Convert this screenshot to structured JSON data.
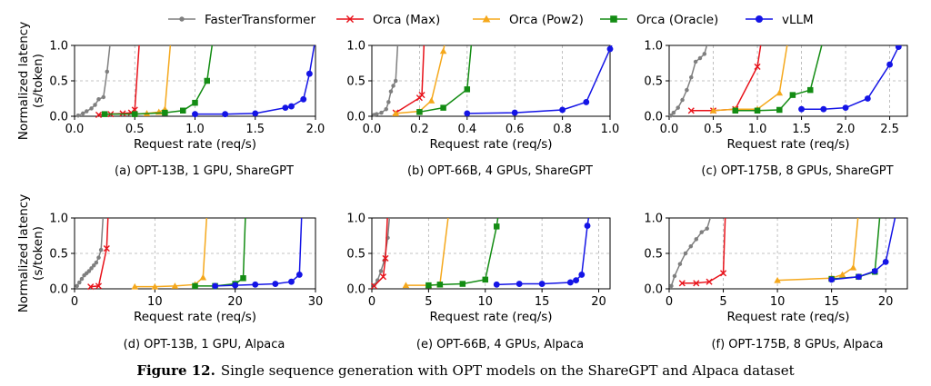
{
  "legend": {
    "items": [
      {
        "name": "FasterTransformer",
        "color": "#7f7f7f",
        "marker": "dot"
      },
      {
        "name": "Orca (Max)",
        "color": "#e8121a",
        "marker": "x"
      },
      {
        "name": "Orca (Pow2)",
        "color": "#f5a81c",
        "marker": "triangle"
      },
      {
        "name": "Orca (Oracle)",
        "color": "#138c13",
        "marker": "square"
      },
      {
        "name": "vLLM",
        "color": "#1414e6",
        "marker": "circle"
      }
    ]
  },
  "ylabel_line1": "Normalized latency",
  "ylabel_line2": "(s/token)",
  "xlabel": "Request rate (req/s)",
  "caption": {
    "label": "Figure 12.",
    "text": "Single sequence generation with OPT models on the ShareGPT and Alpaca dataset"
  },
  "chart_data": [
    {
      "type": "line",
      "subtitle": "(a) OPT-13B, 1 GPU, ShareGPT",
      "xlim": [
        0,
        2.0
      ],
      "ylim": [
        0,
        1.0
      ],
      "xticks": [
        0.0,
        0.5,
        1.0,
        1.5,
        2.0
      ],
      "xtick_labels": [
        "0.0",
        "0.5",
        "1.0",
        "1.5",
        "2.0"
      ],
      "yticks": [
        0.0,
        0.5,
        1.0
      ],
      "ytick_labels": [
        "0.0",
        "0.5",
        "1.0"
      ],
      "series": [
        {
          "name": "FasterTransformer",
          "x": [
            0.03,
            0.07,
            0.1,
            0.14,
            0.17,
            0.2,
            0.24,
            0.27,
            0.3
          ],
          "y": [
            0.01,
            0.04,
            0.07,
            0.11,
            0.16,
            0.24,
            0.27,
            0.63,
            1.1
          ]
        },
        {
          "name": "Orca (Max)",
          "x": [
            0.2,
            0.3,
            0.4,
            0.47,
            0.5,
            0.54
          ],
          "y": [
            0.02,
            0.03,
            0.04,
            0.05,
            0.09,
            1.1
          ]
        },
        {
          "name": "Orca (Pow2)",
          "x": [
            0.5,
            0.6,
            0.7,
            0.75,
            0.8
          ],
          "y": [
            0.03,
            0.04,
            0.06,
            0.1,
            1.1
          ]
        },
        {
          "name": "Orca (Oracle)",
          "x": [
            0.25,
            0.5,
            0.75,
            0.9,
            1.0,
            1.1,
            1.15
          ],
          "y": [
            0.03,
            0.03,
            0.05,
            0.08,
            0.19,
            0.5,
            1.1
          ]
        },
        {
          "name": "vLLM",
          "x": [
            1.0,
            1.25,
            1.5,
            1.75,
            1.8,
            1.9,
            1.95,
            2.0
          ],
          "y": [
            0.03,
            0.03,
            0.04,
            0.12,
            0.14,
            0.24,
            0.6,
            1.1
          ]
        }
      ]
    },
    {
      "type": "line",
      "subtitle": "(b) OPT-66B, 4 GPUs, ShareGPT",
      "xlim": [
        0,
        1.0
      ],
      "ylim": [
        0,
        1.0
      ],
      "xticks": [
        0.0,
        0.2,
        0.4,
        0.6,
        0.8,
        1.0
      ],
      "xtick_labels": [
        "0.0",
        "0.2",
        "0.4",
        "0.6",
        "0.8",
        "1.0"
      ],
      "yticks": [
        0.0,
        0.5,
        1.0
      ],
      "ytick_labels": [
        "0.0",
        "0.5",
        "1.0"
      ],
      "series": [
        {
          "name": "FasterTransformer",
          "x": [
            0.01,
            0.02,
            0.04,
            0.06,
            0.07,
            0.08,
            0.09,
            0.1,
            0.11
          ],
          "y": [
            0.02,
            0.03,
            0.05,
            0.1,
            0.2,
            0.35,
            0.43,
            0.5,
            1.1
          ]
        },
        {
          "name": "Orca (Max)",
          "x": [
            0.1,
            0.2,
            0.21,
            0.22
          ],
          "y": [
            0.05,
            0.26,
            0.3,
            1.1
          ]
        },
        {
          "name": "Orca (Pow2)",
          "x": [
            0.1,
            0.2,
            0.25,
            0.3,
            0.31
          ],
          "y": [
            0.04,
            0.07,
            0.22,
            0.92,
            1.1
          ]
        },
        {
          "name": "Orca (Oracle)",
          "x": [
            0.2,
            0.3,
            0.4,
            0.42
          ],
          "y": [
            0.06,
            0.12,
            0.38,
            1.1
          ]
        },
        {
          "name": "vLLM",
          "x": [
            0.4,
            0.6,
            0.8,
            0.9,
            1.0,
            1.02
          ],
          "y": [
            0.04,
            0.05,
            0.09,
            0.2,
            0.95,
            1.1
          ]
        }
      ]
    },
    {
      "type": "line",
      "subtitle": "(c) OPT-175B, 8 GPUs, ShareGPT",
      "xlim": [
        0,
        2.7
      ],
      "ylim": [
        0,
        1.0
      ],
      "xticks": [
        0.0,
        0.5,
        1.0,
        1.5,
        2.0,
        2.5
      ],
      "xtick_labels": [
        "0.0",
        "0.5",
        "1.0",
        "1.5",
        "2.0",
        "2.5"
      ],
      "yticks": [
        0.0,
        0.5,
        1.0
      ],
      "ytick_labels": [
        "0.0",
        "0.5",
        "1.0"
      ],
      "series": [
        {
          "name": "FasterTransformer",
          "x": [
            0.02,
            0.05,
            0.1,
            0.15,
            0.2,
            0.25,
            0.3,
            0.35,
            0.4,
            0.45
          ],
          "y": [
            0.01,
            0.05,
            0.12,
            0.23,
            0.37,
            0.55,
            0.77,
            0.82,
            0.88,
            1.1
          ]
        },
        {
          "name": "Orca (Max)",
          "x": [
            0.25,
            0.5,
            0.75,
            1.0,
            1.05
          ],
          "y": [
            0.08,
            0.08,
            0.1,
            0.7,
            1.1
          ]
        },
        {
          "name": "Orca (Pow2)",
          "x": [
            0.5,
            0.75,
            1.0,
            1.25,
            1.35
          ],
          "y": [
            0.08,
            0.1,
            0.1,
            0.33,
            1.1
          ]
        },
        {
          "name": "Orca (Oracle)",
          "x": [
            0.75,
            1.0,
            1.25,
            1.4,
            1.6,
            1.75
          ],
          "y": [
            0.08,
            0.08,
            0.09,
            0.3,
            0.37,
            1.1
          ]
        },
        {
          "name": "vLLM",
          "x": [
            1.5,
            1.75,
            2.0,
            2.25,
            2.5,
            2.6,
            2.65
          ],
          "y": [
            0.1,
            0.1,
            0.12,
            0.25,
            0.73,
            0.98,
            1.1
          ]
        }
      ]
    },
    {
      "type": "line",
      "subtitle": "(d) OPT-13B, 1 GPU, Alpaca",
      "xlim": [
        0,
        30
      ],
      "ylim": [
        0,
        1.0
      ],
      "xticks": [
        0,
        10,
        20,
        30
      ],
      "xtick_labels": [
        "0",
        "10",
        "20",
        "30"
      ],
      "yticks": [
        0.0,
        0.5,
        1.0
      ],
      "ytick_labels": [
        "0.0",
        "0.5",
        "1.0"
      ],
      "series": [
        {
          "name": "FasterTransformer",
          "x": [
            0.3,
            0.6,
            0.9,
            1.2,
            1.5,
            1.8,
            2.1,
            2.4,
            2.7,
            3.0,
            3.3,
            3.6
          ],
          "y": [
            0.04,
            0.09,
            0.14,
            0.19,
            0.22,
            0.25,
            0.29,
            0.33,
            0.37,
            0.44,
            0.55,
            1.1
          ]
        },
        {
          "name": "Orca (Max)",
          "x": [
            2.0,
            3.0,
            4.0,
            4.2
          ],
          "y": [
            0.03,
            0.04,
            0.57,
            1.1
          ]
        },
        {
          "name": "Orca (Pow2)",
          "x": [
            7.5,
            10,
            12.5,
            15,
            16,
            16.5
          ],
          "y": [
            0.03,
            0.03,
            0.04,
            0.06,
            0.16,
            1.1
          ]
        },
        {
          "name": "Orca (Oracle)",
          "x": [
            15,
            17.5,
            20,
            21,
            21.3
          ],
          "y": [
            0.04,
            0.04,
            0.07,
            0.15,
            1.1
          ]
        },
        {
          "name": "vLLM",
          "x": [
            17.5,
            20,
            22.5,
            25,
            27,
            28,
            28.3
          ],
          "y": [
            0.04,
            0.05,
            0.06,
            0.07,
            0.1,
            0.2,
            1.1
          ]
        }
      ]
    },
    {
      "type": "line",
      "subtitle": "(e) OPT-66B, 4 GPUs, Alpaca",
      "xlim": [
        0,
        21
      ],
      "ylim": [
        0,
        1.0
      ],
      "xticks": [
        0,
        5,
        10,
        15,
        20
      ],
      "xtick_labels": [
        "0",
        "5",
        "10",
        "15",
        "20"
      ],
      "yticks": [
        0.0,
        0.5,
        1.0
      ],
      "ytick_labels": [
        "0.0",
        "0.5",
        "1.0"
      ],
      "series": [
        {
          "name": "FasterTransformer",
          "x": [
            0.2,
            0.5,
            0.8,
            1.1,
            1.4,
            1.6
          ],
          "y": [
            0.05,
            0.12,
            0.25,
            0.4,
            0.72,
            1.1
          ]
        },
        {
          "name": "Orca (Max)",
          "x": [
            0.2,
            1.0,
            1.2,
            1.4
          ],
          "y": [
            0.04,
            0.17,
            0.43,
            1.1
          ]
        },
        {
          "name": "Orca (Pow2)",
          "x": [
            3,
            5,
            6,
            6.8
          ],
          "y": [
            0.05,
            0.05,
            0.06,
            1.1
          ]
        },
        {
          "name": "Orca (Oracle)",
          "x": [
            5,
            6,
            8,
            10,
            11,
            11.2
          ],
          "y": [
            0.05,
            0.06,
            0.07,
            0.13,
            0.88,
            1.1
          ]
        },
        {
          "name": "vLLM",
          "x": [
            11,
            13,
            15,
            17.5,
            18,
            18.5,
            19,
            19.2
          ],
          "y": [
            0.06,
            0.07,
            0.07,
            0.09,
            0.12,
            0.2,
            0.89,
            1.1
          ]
        }
      ]
    },
    {
      "type": "line",
      "subtitle": "(f) OPT-175B, 8 GPUs, Alpaca",
      "xlim": [
        0,
        22
      ],
      "ylim": [
        0,
        1.0
      ],
      "xticks": [
        0,
        5,
        10,
        15,
        20
      ],
      "xtick_labels": [
        "0",
        "5",
        "10",
        "15",
        "20"
      ],
      "yticks": [
        0.0,
        0.5,
        1.0
      ],
      "ytick_labels": [
        "0.0",
        "0.5",
        "1.0"
      ],
      "series": [
        {
          "name": "FasterTransformer",
          "x": [
            0.2,
            0.5,
            1.0,
            1.5,
            2.0,
            2.5,
            3.0,
            3.5,
            4.0
          ],
          "y": [
            0.04,
            0.18,
            0.35,
            0.5,
            0.6,
            0.7,
            0.8,
            0.85,
            1.1
          ]
        },
        {
          "name": "Orca (Max)",
          "x": [
            1.2,
            2.5,
            3.7,
            5.0,
            5.2
          ],
          "y": [
            0.08,
            0.08,
            0.1,
            0.22,
            1.1
          ]
        },
        {
          "name": "Orca (Pow2)",
          "x": [
            10,
            15,
            16,
            17,
            17.5
          ],
          "y": [
            0.12,
            0.15,
            0.2,
            0.3,
            1.1
          ]
        },
        {
          "name": "Orca (Oracle)",
          "x": [
            15,
            17.5,
            19,
            19.5
          ],
          "y": [
            0.14,
            0.17,
            0.24,
            1.1
          ]
        },
        {
          "name": "vLLM",
          "x": [
            15,
            17.5,
            19,
            20,
            21
          ],
          "y": [
            0.13,
            0.17,
            0.25,
            0.38,
            1.1
          ]
        }
      ]
    }
  ]
}
